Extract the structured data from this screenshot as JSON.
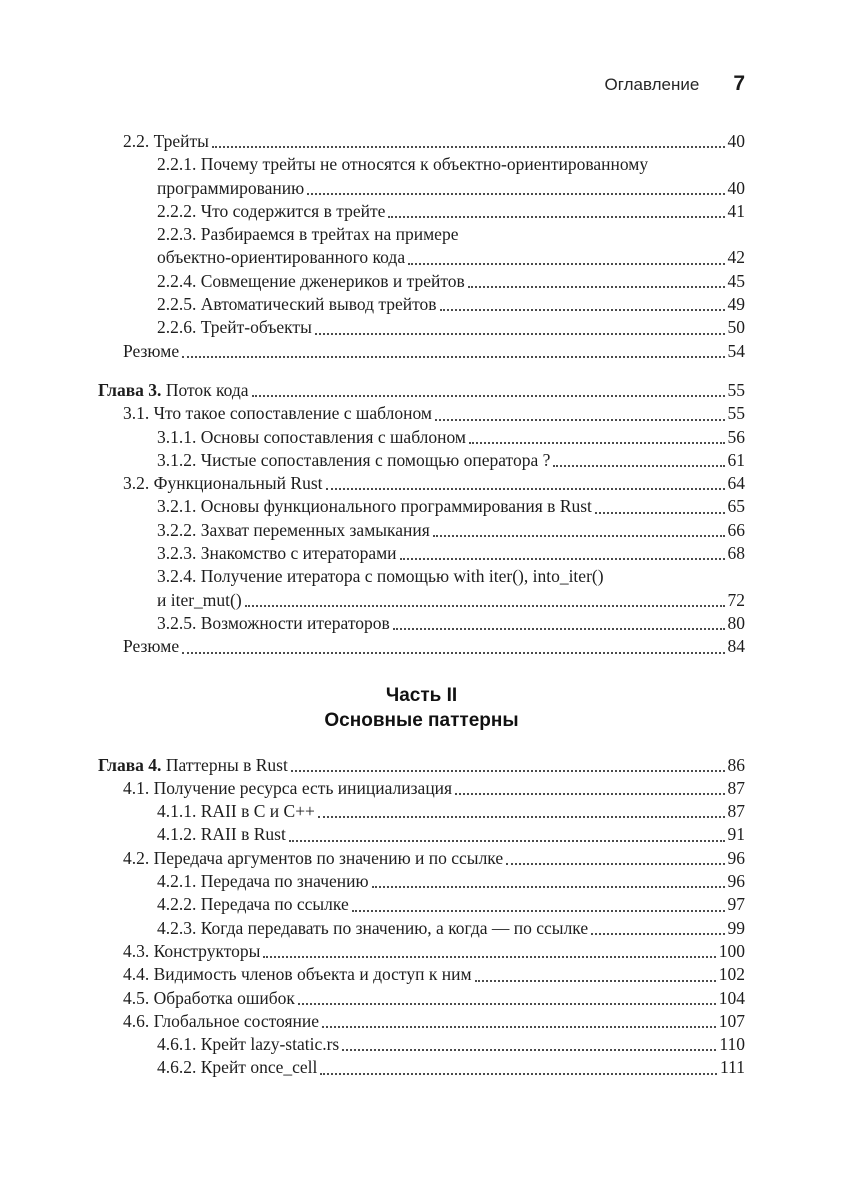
{
  "header": {
    "title": "Оглавление",
    "page_number": "7"
  },
  "part_divider": {
    "line1": "Часть II",
    "line2": "Основные паттерны"
  },
  "toc": {
    "sections": [
      {
        "rows": [
          {
            "level": 1,
            "text": "2.2. Трейты",
            "page": "40"
          },
          {
            "level": 2,
            "text": "2.2.1. Почему трейты не относятся к объектно-ориентированному",
            "text2": "программированию",
            "page": "40"
          },
          {
            "level": 2,
            "text": "2.2.2. Что содержится в трейте",
            "page": "41"
          },
          {
            "level": 2,
            "text": "2.2.3. Разбираемся в трейтах на примере",
            "text2": "объектно-ориентированного кода",
            "page": "42"
          },
          {
            "level": 2,
            "text": "2.2.4. Совмещение дженериков и трейтов",
            "page": "45"
          },
          {
            "level": 2,
            "text": "2.2.5. Автоматический вывод трейтов",
            "page": "49"
          },
          {
            "level": 2,
            "text": "2.2.6. Трейт-объекты",
            "page": "50"
          },
          {
            "level": 1,
            "text": "Резюме",
            "page": "54"
          },
          {
            "level": 0,
            "bold": "Глава 3.",
            "text": " Поток кода",
            "page": "55",
            "gap_before": true
          },
          {
            "level": 1,
            "text": "3.1. Что такое сопоставление с шаблоном",
            "page": "55"
          },
          {
            "level": 2,
            "text": "3.1.1. Основы сопоставления с шаблоном",
            "page": "56"
          },
          {
            "level": 2,
            "text": "3.1.2. Чистые сопоставления с помощью оператора ?",
            "page": "61"
          },
          {
            "level": 1,
            "text": "3.2. Функциональный Rust",
            "page": "64"
          },
          {
            "level": 2,
            "text": "3.2.1. Основы функционального программирования в Rust",
            "page": "65"
          },
          {
            "level": 2,
            "text": "3.2.2. Захват переменных замыкания",
            "page": "66"
          },
          {
            "level": 2,
            "text": "3.2.3. Знакомство с итераторами",
            "page": "68"
          },
          {
            "level": 2,
            "text": "3.2.4. Получение итератора с помощью with iter(), into_iter()",
            "text2": "и iter_mut()",
            "page": "72"
          },
          {
            "level": 2,
            "text": "3.2.5. Возможности итераторов",
            "page": "80"
          },
          {
            "level": 1,
            "text": "Резюме",
            "page": "84"
          }
        ]
      },
      {
        "rows": [
          {
            "level": 0,
            "bold": "Глава 4.",
            "text": " Паттерны в Rust",
            "page": "86"
          },
          {
            "level": 1,
            "text": "4.1. Получение ресурса есть инициализация",
            "page": "87"
          },
          {
            "level": 2,
            "text": "4.1.1. RAII в C и C++",
            "page": "87"
          },
          {
            "level": 2,
            "text": "4.1.2. RAII в Rust",
            "page": "91"
          },
          {
            "level": 1,
            "text": "4.2. Передача аргументов по значению и по ссылке",
            "page": "96"
          },
          {
            "level": 2,
            "text": "4.2.1. Передача по значению",
            "page": "96"
          },
          {
            "level": 2,
            "text": "4.2.2. Передача по ссылке",
            "page": "97"
          },
          {
            "level": 2,
            "text": "4.2.3. Когда передавать по значению, а когда — по ссылке",
            "page": "99"
          },
          {
            "level": 1,
            "text": "4.3. Конструкторы",
            "page": "100"
          },
          {
            "level": 1,
            "text": "4.4. Видимость членов объекта и доступ к ним",
            "page": "102"
          },
          {
            "level": 1,
            "text": "4.5. Обработка ошибок",
            "page": "104"
          },
          {
            "level": 1,
            "text": "4.6. Глобальное состояние",
            "page": "107"
          },
          {
            "level": 2,
            "text": "4.6.1. Крейт lazy-static.rs",
            "page": "110"
          },
          {
            "level": 2,
            "text": "4.6.2. Крейт once_cell",
            "page": "111"
          }
        ]
      }
    ]
  }
}
